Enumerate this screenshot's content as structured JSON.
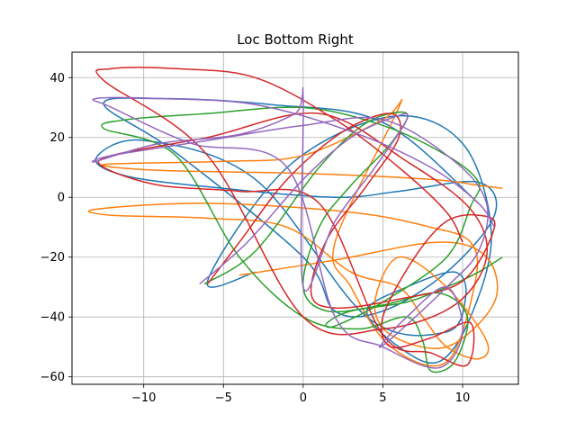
{
  "chart_data": {
    "type": "line",
    "title": "Loc Bottom Right",
    "xlabel": "",
    "ylabel": "",
    "xlim": [
      -14.5,
      13.5
    ],
    "ylim": [
      -62.5,
      48.5
    ],
    "xticks": [
      -10,
      -5,
      0,
      5,
      10
    ],
    "yticks": [
      -60,
      -40,
      -20,
      0,
      20,
      40
    ],
    "xtick_labels": [
      "−10",
      "−5",
      "0",
      "5",
      "10"
    ],
    "ytick_labels": [
      "−60",
      "−40",
      "−20",
      "0",
      "20",
      "40"
    ],
    "grid": true,
    "legend": "none",
    "series": [
      {
        "color": "#1f77b4",
        "x": [
          -3.0,
          -6.0,
          -1.0,
          5.5,
          10.0,
          11.8,
          10.5,
          8.5,
          6.0,
          4.0,
          6.5,
          9.5,
          10.2,
          9.0,
          4.0,
          -3.0,
          -10.0,
          -13.0,
          -11.0,
          -5.0,
          2.0,
          6.0,
          11.0,
          12.0,
          9.0,
          5.0,
          2.0,
          0.0,
          -8.0,
          -12.5,
          -9.0,
          -2.0,
          5.0,
          11.0
        ],
        "y": [
          -25.0,
          -28.0,
          10.0,
          27.0,
          18.0,
          -12.0,
          -40.0,
          -55.0,
          -50.0,
          -38.0,
          -30.0,
          -25.0,
          -33.0,
          -45.0,
          -40.0,
          6.0,
          19.0,
          13.0,
          7.0,
          3.0,
          0.0,
          2.0,
          5.0,
          -6.0,
          -25.0,
          -38.0,
          -38.0,
          -20.0,
          15.0,
          31.0,
          33.0,
          31.0,
          25.0,
          -2.0
        ]
      },
      {
        "color": "#ff7f0e",
        "x": [
          -4.0,
          2.0,
          8.5,
          11.5,
          12.0,
          9.0,
          5.5,
          4.5,
          6.0,
          9.0,
          11.5,
          11.0,
          9.0,
          7.5,
          6.0,
          3.0,
          -1.0,
          -6.0,
          -12.0,
          -13.0,
          -6.0,
          3.0,
          8.0,
          10.5,
          10.8,
          9.0,
          5.5,
          3.0,
          2.0,
          6.0,
          5.0,
          0.0,
          -5.0,
          -12.5,
          -9.0,
          0.0,
          8.0,
          11.0,
          12.5
        ],
        "y": [
          -26.0,
          -21.0,
          -15.0,
          -20.0,
          -35.0,
          -50.0,
          -46.0,
          -35.0,
          -20.0,
          -30.0,
          -48.0,
          -54.0,
          -50.0,
          -40.0,
          -30.0,
          -25.0,
          -10.0,
          -7.0,
          -6.0,
          -4.0,
          -2.0,
          -5.0,
          -10.0,
          -15.0,
          -28.0,
          -55.0,
          -50.0,
          -30.0,
          -15.0,
          30.0,
          26.0,
          14.0,
          12.0,
          11.0,
          9.0,
          8.0,
          6.0,
          4.0,
          3.0
        ]
      },
      {
        "color": "#2ca02c",
        "x": [
          -6.2,
          -3.0,
          1.0,
          4.0,
          6.5,
          5.5,
          3.0,
          1.0,
          0.0,
          1.5,
          5.0,
          8.5,
          10.3,
          9.5,
          8.0,
          7.5,
          6.5,
          3.5,
          0.0,
          -4.0,
          -8.0,
          -12.5,
          -11.0,
          -6.0,
          0.0,
          5.0,
          9.0,
          11.0,
          10.5,
          9.0,
          5.0,
          2.0,
          1.5,
          3.0,
          6.5,
          9.0,
          11.0,
          12.5
        ],
        "y": [
          -29.0,
          -18.0,
          10.0,
          25.0,
          28.0,
          18.0,
          4.0,
          -10.0,
          -30.0,
          -38.0,
          -36.0,
          -32.0,
          -40.0,
          -55.0,
          -58.0,
          -48.0,
          -40.0,
          -44.0,
          -40.0,
          -20.0,
          14.0,
          23.0,
          26.0,
          28.0,
          30.0,
          24.0,
          14.0,
          5.0,
          -3.0,
          -20.0,
          -35.0,
          -43.0,
          -42.0,
          -38.0,
          -35.0,
          -30.0,
          -25.0,
          -20.0
        ]
      },
      {
        "color": "#d62728",
        "x": [
          -6.0,
          -4.0,
          -1.0,
          2.5,
          5.5,
          6.0,
          4.0,
          1.5,
          0.5,
          2.0,
          6.0,
          10.0,
          12.0,
          11.0,
          9.0,
          7.0,
          5.0,
          5.5,
          8.0,
          10.5,
          10.3,
          8.0,
          5.0,
          1.0,
          -4.0,
          -9.0,
          -12.5,
          -12.0,
          -6.0,
          1.0,
          6.5,
          10.5,
          11.5,
          9.5,
          5.0,
          0.0,
          -6.0,
          -12.5,
          -12.0,
          -8.0,
          -3.0,
          2.0,
          6.0,
          9.0,
          10.0
        ],
        "y": [
          -29.0,
          -15.0,
          6.0,
          22.0,
          28.0,
          20.0,
          4.0,
          -14.0,
          -32.0,
          -37.0,
          -34.0,
          -28.0,
          -10.0,
          -6.0,
          -8.0,
          -20.0,
          -40.0,
          -50.0,
          -47.0,
          -42.0,
          -56.0,
          -52.0,
          -46.0,
          -2.0,
          2.0,
          4.0,
          10.0,
          14.0,
          20.0,
          28.0,
          12.0,
          -4.0,
          -20.0,
          -36.0,
          -44.0,
          -40.0,
          14.0,
          39.0,
          43.0,
          43.0,
          40.0,
          26.0,
          10.0,
          -5.0,
          -15.0
        ]
      },
      {
        "color": "#9467bd",
        "x": [
          -6.5,
          -3.5,
          0.0,
          3.0,
          5.8,
          6.5,
          4.5,
          2.0,
          0.0,
          0.0,
          -0.5,
          -4.0,
          -9.0,
          -13.0,
          -12.0,
          -6.0,
          0.0,
          5.0,
          9.5,
          11.5,
          11.0,
          9.0,
          6.0,
          4.8,
          6.5,
          9.0,
          10.0,
          8.5,
          5.0,
          2.0,
          -1.0,
          -7.0,
          -12.0,
          -13.0,
          -9.0,
          -3.0,
          3.0,
          8.0,
          11.0,
          12.0
        ],
        "y": [
          -29.0,
          -15.0,
          6.0,
          20.0,
          27.0,
          26.0,
          10.0,
          -8.0,
          -30.0,
          33.0,
          28.0,
          21.0,
          18.0,
          12.0,
          14.0,
          19.0,
          24.0,
          26.0,
          12.0,
          -2.0,
          -18.0,
          -30.0,
          -45.0,
          -50.0,
          -40.0,
          -30.0,
          -45.0,
          -57.0,
          -50.0,
          -40.0,
          10.0,
          18.0,
          30.0,
          33.0,
          33.0,
          31.0,
          22.0,
          10.0,
          -2.0,
          -10.0
        ]
      }
    ]
  }
}
